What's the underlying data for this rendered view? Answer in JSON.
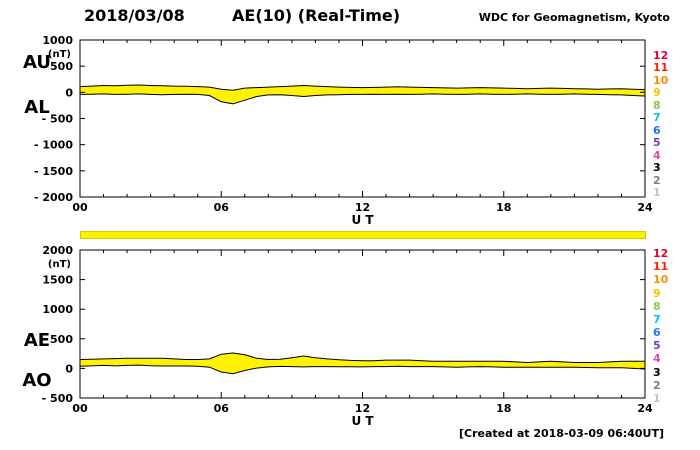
{
  "header": {
    "date": "2018/03/08",
    "title": "AE(10) (Real-Time)",
    "credit": "WDC for Geomagnetism, Kyoto"
  },
  "footer": {
    "created": "[Created at 2018-03-09 06:40UT]"
  },
  "colors": {
    "band": "#fff200",
    "availability_bar": "#fff200",
    "axis": "#000000"
  },
  "station_legend": [
    {
      "label": "12",
      "color": "#e60039"
    },
    {
      "label": "11",
      "color": "#ff2200"
    },
    {
      "label": "10",
      "color": "#ff8c00"
    },
    {
      "label": "9",
      "color": "#eec800"
    },
    {
      "label": "8",
      "color": "#88cc44"
    },
    {
      "label": "7",
      "color": "#00c8e0"
    },
    {
      "label": "6",
      "color": "#2277ee"
    },
    {
      "label": "5",
      "color": "#7a3fc0"
    },
    {
      "label": "4",
      "color": "#ee44aa"
    },
    {
      "label": "3",
      "color": "#000000"
    },
    {
      "label": "2",
      "color": "#808080"
    },
    {
      "label": "1",
      "color": "#c4c4c4"
    }
  ],
  "chart_data": {
    "type": "area",
    "title": "AE(10) (Real-Time) 2018/03/08",
    "x": {
      "start": 0,
      "end": 24,
      "step": 0.5,
      "unit": "hours UT"
    },
    "panels": [
      {
        "name": "AU-AL",
        "left_labels": [
          "AU",
          "AL"
        ],
        "ylabel": "(nT)",
        "xlabel": "U T",
        "ylim": [
          -2000,
          1000
        ],
        "xlim": [
          0,
          24
        ],
        "grid": false,
        "yticks": [
          {
            "v": 1000,
            "label": "1000"
          },
          {
            "v": 500,
            "label": "500"
          },
          {
            "v": 0,
            "label": "0"
          },
          {
            "v": -500,
            "label": "- 500"
          },
          {
            "v": -1000,
            "label": "- 1000"
          },
          {
            "v": -1500,
            "label": "- 1500"
          },
          {
            "v": -2000,
            "label": "- 2000"
          }
        ],
        "xticks": [
          {
            "v": 0,
            "label": "00"
          },
          {
            "v": 6,
            "label": "06"
          },
          {
            "v": 12,
            "label": "12"
          },
          {
            "v": 18,
            "label": "18"
          },
          {
            "v": 24,
            "label": "24"
          }
        ],
        "series": [
          {
            "name": "AU",
            "values": [
              110,
              120,
              130,
              125,
              135,
              140,
              130,
              125,
              120,
              115,
              110,
              100,
              60,
              40,
              80,
              90,
              100,
              110,
              120,
              130,
              120,
              110,
              100,
              95,
              90,
              95,
              100,
              105,
              100,
              95,
              90,
              85,
              80,
              85,
              90,
              85,
              80,
              75,
              70,
              75,
              80,
              75,
              70,
              65,
              60,
              65,
              70,
              60,
              50
            ]
          },
          {
            "name": "AL",
            "values": [
              -40,
              -35,
              -30,
              -40,
              -35,
              -30,
              -40,
              -45,
              -40,
              -35,
              -40,
              -60,
              -180,
              -220,
              -150,
              -80,
              -50,
              -45,
              -60,
              -80,
              -60,
              -50,
              -45,
              -40,
              -40,
              -35,
              -40,
              -35,
              -40,
              -35,
              -30,
              -35,
              -40,
              -35,
              -30,
              -35,
              -40,
              -35,
              -30,
              -35,
              -40,
              -35,
              -30,
              -35,
              -40,
              -45,
              -50,
              -60,
              -70
            ]
          }
        ]
      },
      {
        "name": "AE-AO",
        "left_labels": [
          "AE",
          "AO"
        ],
        "ylabel": "(nT)",
        "xlabel": "U T",
        "ylim": [
          -500,
          2000
        ],
        "xlim": [
          0,
          24
        ],
        "grid": false,
        "yticks": [
          {
            "v": 2000,
            "label": "2000"
          },
          {
            "v": 1500,
            "label": "1500"
          },
          {
            "v": 1000,
            "label": "1000"
          },
          {
            "v": 500,
            "label": "500"
          },
          {
            "v": 0,
            "label": "0"
          },
          {
            "v": -500,
            "label": "- 500"
          }
        ],
        "xticks": [
          {
            "v": 0,
            "label": "00"
          },
          {
            "v": 6,
            "label": "06"
          },
          {
            "v": 12,
            "label": "12"
          },
          {
            "v": 18,
            "label": "18"
          },
          {
            "v": 24,
            "label": "24"
          }
        ],
        "series": [
          {
            "name": "AE",
            "values": [
              150,
              155,
              160,
              165,
              170,
              170,
              170,
              170,
              160,
              150,
              150,
              160,
              240,
              260,
              230,
              170,
              150,
              155,
              180,
              210,
              180,
              160,
              145,
              135,
              130,
              130,
              140,
              140,
              140,
              130,
              120,
              120,
              120,
              120,
              120,
              120,
              120,
              110,
              100,
              110,
              120,
              110,
              100,
              100,
              100,
              110,
              120,
              120,
              120
            ]
          },
          {
            "name": "AO",
            "values": [
              35,
              43,
              50,
              43,
              50,
              55,
              45,
              40,
              40,
              40,
              35,
              20,
              -60,
              -90,
              -35,
              5,
              25,
              33,
              30,
              25,
              30,
              30,
              28,
              28,
              25,
              30,
              30,
              35,
              30,
              30,
              30,
              25,
              20,
              25,
              30,
              25,
              20,
              20,
              20,
              20,
              20,
              20,
              20,
              15,
              10,
              10,
              10,
              0,
              -10
            ]
          }
        ]
      }
    ]
  }
}
